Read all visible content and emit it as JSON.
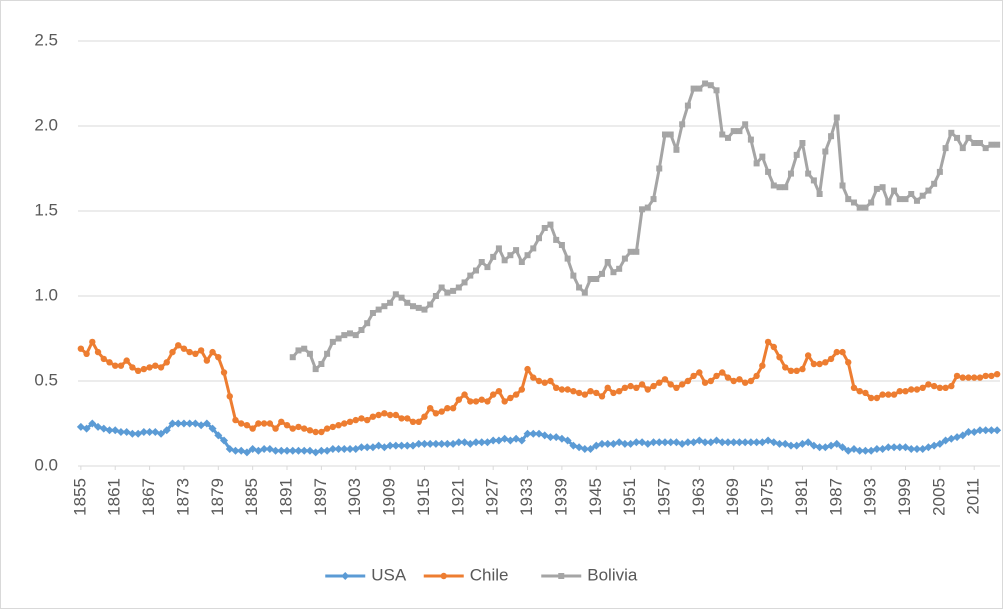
{
  "chart_data": {
    "type": "line",
    "x": [
      1855,
      1856,
      1857,
      1858,
      1859,
      1860,
      1861,
      1862,
      1863,
      1864,
      1865,
      1866,
      1867,
      1868,
      1869,
      1870,
      1871,
      1872,
      1873,
      1874,
      1875,
      1876,
      1877,
      1878,
      1879,
      1880,
      1881,
      1882,
      1883,
      1884,
      1885,
      1886,
      1887,
      1888,
      1889,
      1890,
      1891,
      1892,
      1893,
      1894,
      1895,
      1896,
      1897,
      1898,
      1899,
      1900,
      1901,
      1902,
      1903,
      1904,
      1905,
      1906,
      1907,
      1908,
      1909,
      1910,
      1911,
      1912,
      1913,
      1914,
      1915,
      1916,
      1917,
      1918,
      1919,
      1920,
      1921,
      1922,
      1923,
      1924,
      1925,
      1926,
      1927,
      1928,
      1929,
      1930,
      1931,
      1932,
      1933,
      1934,
      1935,
      1936,
      1937,
      1938,
      1939,
      1940,
      1941,
      1942,
      1943,
      1944,
      1945,
      1946,
      1947,
      1948,
      1949,
      1950,
      1951,
      1952,
      1953,
      1954,
      1955,
      1956,
      1957,
      1958,
      1959,
      1960,
      1961,
      1962,
      1963,
      1964,
      1965,
      1966,
      1967,
      1968,
      1969,
      1970,
      1971,
      1972,
      1973,
      1974,
      1975,
      1976,
      1977,
      1978,
      1979,
      1980,
      1981,
      1982,
      1983,
      1984,
      1985,
      1986,
      1987,
      1988,
      1989,
      1990,
      1991,
      1992,
      1993,
      1994,
      1995,
      1996,
      1997,
      1998,
      1999,
      2000,
      2001,
      2002,
      2003,
      2004,
      2005,
      2006,
      2007,
      2008,
      2009,
      2010,
      2011,
      2012,
      2013,
      2014,
      2015
    ],
    "xlim": [
      1854.5,
      2015.5
    ],
    "xticks": [
      1855,
      1861,
      1867,
      1873,
      1879,
      1885,
      1891,
      1897,
      1903,
      1909,
      1915,
      1921,
      1927,
      1933,
      1939,
      1945,
      1951,
      1957,
      1963,
      1969,
      1975,
      1981,
      1987,
      1993,
      1999,
      2005,
      2011
    ],
    "ylim": [
      0,
      2.5
    ],
    "yticks": [
      {
        "value": 0,
        "label": "0.0"
      },
      0.5,
      {
        "value": 1,
        "label": "1.0"
      },
      1.5,
      {
        "value": 2,
        "label": "2.0"
      },
      2.5
    ],
    "grid": true,
    "legend": "bottom",
    "series": [
      {
        "name": "USA",
        "color": "#5b9bd5",
        "marker": "diamond",
        "values": [
          0.23,
          0.22,
          0.25,
          0.23,
          0.22,
          0.21,
          0.21,
          0.2,
          0.2,
          0.19,
          0.19,
          0.2,
          0.2,
          0.2,
          0.19,
          0.21,
          0.25,
          0.25,
          0.25,
          0.25,
          0.25,
          0.24,
          0.25,
          0.22,
          0.18,
          0.15,
          0.1,
          0.09,
          0.09,
          0.08,
          0.1,
          0.09,
          0.1,
          0.1,
          0.09,
          0.09,
          0.09,
          0.09,
          0.09,
          0.09,
          0.09,
          0.08,
          0.09,
          0.09,
          0.1,
          0.1,
          0.1,
          0.1,
          0.1,
          0.11,
          0.11,
          0.11,
          0.12,
          0.11,
          0.12,
          0.12,
          0.12,
          0.12,
          0.12,
          0.13,
          0.13,
          0.13,
          0.13,
          0.13,
          0.13,
          0.13,
          0.14,
          0.14,
          0.13,
          0.14,
          0.14,
          0.14,
          0.15,
          0.15,
          0.16,
          0.15,
          0.16,
          0.15,
          0.19,
          0.19,
          0.19,
          0.18,
          0.17,
          0.17,
          0.16,
          0.15,
          0.12,
          0.11,
          0.1,
          0.1,
          0.12,
          0.13,
          0.13,
          0.13,
          0.14,
          0.13,
          0.13,
          0.14,
          0.14,
          0.13,
          0.14,
          0.14,
          0.14,
          0.14,
          0.14,
          0.13,
          0.14,
          0.14,
          0.15,
          0.14,
          0.14,
          0.15,
          0.14,
          0.14,
          0.14,
          0.14,
          0.14,
          0.14,
          0.14,
          0.14,
          0.15,
          0.14,
          0.13,
          0.13,
          0.12,
          0.12,
          0.13,
          0.14,
          0.12,
          0.11,
          0.11,
          0.12,
          0.13,
          0.11,
          0.09,
          0.1,
          0.09,
          0.09,
          0.09,
          0.1,
          0.1,
          0.11,
          0.11,
          0.11,
          0.11,
          0.1,
          0.1,
          0.1,
          0.11,
          0.12,
          0.13,
          0.15,
          0.16,
          0.17,
          0.18,
          0.2,
          0.2,
          0.21,
          0.21,
          0.21,
          0.21
        ]
      },
      {
        "name": "Chile",
        "color": "#ed7d31",
        "marker": "circle",
        "values": [
          0.69,
          0.66,
          0.73,
          0.67,
          0.63,
          0.61,
          0.59,
          0.59,
          0.62,
          0.58,
          0.56,
          0.57,
          0.58,
          0.59,
          0.58,
          0.61,
          0.67,
          0.71,
          0.69,
          0.67,
          0.66,
          0.68,
          0.62,
          0.67,
          0.64,
          0.55,
          0.41,
          0.27,
          0.25,
          0.24,
          0.22,
          0.25,
          0.25,
          0.25,
          0.22,
          0.26,
          0.24,
          0.22,
          0.23,
          0.22,
          0.21,
          0.2,
          0.2,
          0.22,
          0.23,
          0.24,
          0.25,
          0.26,
          0.27,
          0.28,
          0.27,
          0.29,
          0.3,
          0.31,
          0.3,
          0.3,
          0.28,
          0.28,
          0.26,
          0.26,
          0.29,
          0.34,
          0.31,
          0.32,
          0.34,
          0.34,
          0.39,
          0.42,
          0.38,
          0.38,
          0.39,
          0.38,
          0.42,
          0.44,
          0.38,
          0.4,
          0.42,
          0.45,
          0.57,
          0.52,
          0.5,
          0.49,
          0.5,
          0.46,
          0.45,
          0.45,
          0.44,
          0.43,
          0.42,
          0.44,
          0.43,
          0.41,
          0.46,
          0.43,
          0.44,
          0.46,
          0.47,
          0.46,
          0.48,
          0.45,
          0.47,
          0.49,
          0.51,
          0.48,
          0.46,
          0.48,
          0.5,
          0.53,
          0.55,
          0.49,
          0.5,
          0.53,
          0.55,
          0.52,
          0.5,
          0.51,
          0.49,
          0.5,
          0.53,
          0.59,
          0.73,
          0.7,
          0.64,
          0.58,
          0.56,
          0.56,
          0.57,
          0.65,
          0.6,
          0.6,
          0.61,
          0.63,
          0.67,
          0.67,
          0.61,
          0.46,
          0.44,
          0.43,
          0.4,
          0.4,
          0.42,
          0.42,
          0.42,
          0.44,
          0.44,
          0.45,
          0.45,
          0.46,
          0.48,
          0.47,
          0.46,
          0.46,
          0.47,
          0.53,
          0.52,
          0.52,
          0.52,
          0.52,
          0.53,
          0.53,
          0.54
        ]
      },
      {
        "name": "Bolivia",
        "color": "#a5a5a5",
        "marker": "square",
        "values": [
          null,
          null,
          null,
          null,
          null,
          null,
          null,
          null,
          null,
          null,
          null,
          null,
          null,
          null,
          null,
          null,
          null,
          null,
          null,
          null,
          null,
          null,
          null,
          null,
          null,
          null,
          null,
          null,
          null,
          null,
          null,
          null,
          null,
          null,
          null,
          null,
          null,
          0.64,
          0.68,
          0.69,
          0.66,
          0.57,
          0.6,
          0.66,
          0.73,
          0.75,
          0.77,
          0.78,
          0.77,
          0.8,
          0.84,
          0.9,
          0.92,
          0.94,
          0.96,
          1.01,
          0.99,
          0.96,
          0.94,
          0.93,
          0.92,
          0.95,
          1.0,
          1.05,
          1.02,
          1.03,
          1.05,
          1.08,
          1.12,
          1.15,
          1.2,
          1.17,
          1.23,
          1.28,
          1.21,
          1.24,
          1.27,
          1.2,
          1.24,
          1.28,
          1.34,
          1.4,
          1.42,
          1.33,
          1.3,
          1.22,
          1.12,
          1.05,
          1.02,
          1.1,
          1.1,
          1.13,
          1.2,
          1.14,
          1.16,
          1.22,
          1.26,
          1.26,
          1.51,
          1.52,
          1.57,
          1.75,
          1.95,
          1.95,
          1.86,
          2.01,
          2.12,
          2.22,
          2.22,
          2.25,
          2.24,
          2.21,
          1.95,
          1.93,
          1.97,
          1.97,
          2.01,
          1.92,
          1.78,
          1.82,
          1.73,
          1.65,
          1.64,
          1.64,
          1.72,
          1.83,
          1.9,
          1.72,
          1.68,
          1.6,
          1.85,
          1.94,
          2.05,
          1.65,
          1.57,
          1.55,
          1.52,
          1.52,
          1.55,
          1.63,
          1.64,
          1.55,
          1.62,
          1.57,
          1.57,
          1.6,
          1.56,
          1.59,
          1.62,
          1.66,
          1.73,
          1.87,
          1.96,
          1.93,
          1.87,
          1.93,
          1.9,
          1.9,
          1.87,
          1.89,
          1.89
        ]
      }
    ]
  }
}
